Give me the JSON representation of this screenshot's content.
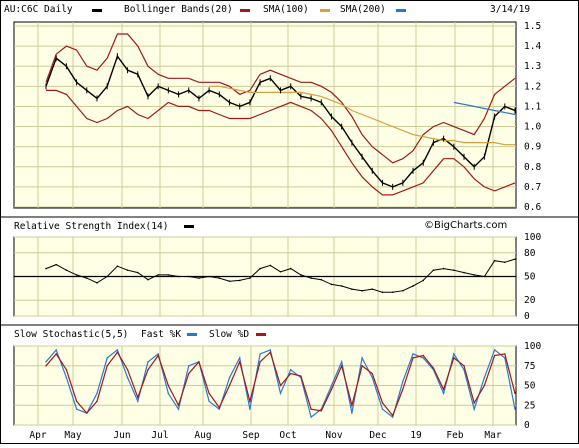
{
  "date": "3/14/19",
  "watermark": "©BigCharts.com",
  "colors": {
    "plot_bg": "#ffffe6",
    "grid": "#cccc99",
    "price": "#000000",
    "bollinger": "#a01818",
    "sma100": "#d4a040",
    "sma200": "#2a78d0",
    "fast_k": "#2a78d0",
    "slow_d": "#a01818",
    "rsi": "#000000"
  },
  "price_panel": {
    "legend": [
      {
        "label": "AU:C6C Daily",
        "color": "#000000",
        "icon": "swatch-dash"
      },
      {
        "label": "Bollinger Bands(20)",
        "color": "#a01818",
        "icon": "swatch-dash"
      },
      {
        "label": "SMA(100)",
        "color": "#d4a040",
        "icon": "swatch-dash"
      },
      {
        "label": "SMA(200)",
        "color": "#2a78d0",
        "icon": "swatch-dash"
      }
    ],
    "y_ticks": [
      "1.5",
      "1.4",
      "1.3",
      "1.2",
      "1.1",
      "1.0",
      "0.9",
      "0.8",
      "0.7",
      "0.6"
    ]
  },
  "rsi_panel": {
    "title": "Relative Strength Index(14)",
    "icon": "swatch-dash",
    "y_ticks": [
      "100",
      "80",
      "50",
      "20",
      "0"
    ]
  },
  "stoch_panel": {
    "title": "Slow Stochastic(5,5)",
    "fast_label": "Fast %K",
    "slow_label": "Slow %D",
    "y_ticks": [
      "100",
      "75",
      "50",
      "25",
      "0"
    ]
  },
  "x_ticks": [
    "Apr",
    "May",
    "Jun",
    "Jul",
    "Aug",
    "Sep",
    "Oct",
    "Nov",
    "Dec",
    "19",
    "Feb",
    "Mar"
  ],
  "chart_data": [
    {
      "type": "line",
      "title": "AU:C6C Daily",
      "ylim": [
        0.6,
        1.5
      ],
      "x": [
        "2018-04-23",
        "2018-05-01",
        "2018-05-07",
        "2018-05-14",
        "2018-05-21",
        "2018-05-28",
        "2018-06-04",
        "2018-06-11",
        "2018-06-18",
        "2018-06-25",
        "2018-07-02",
        "2018-07-09",
        "2018-07-16",
        "2018-07-23",
        "2018-07-30",
        "2018-08-06",
        "2018-08-13",
        "2018-08-20",
        "2018-08-27",
        "2018-09-03",
        "2018-09-10",
        "2018-09-17",
        "2018-09-24",
        "2018-10-01",
        "2018-10-08",
        "2018-10-15",
        "2018-10-22",
        "2018-10-29",
        "2018-11-05",
        "2018-11-12",
        "2018-11-19",
        "2018-11-26",
        "2018-12-03",
        "2018-12-10",
        "2018-12-17",
        "2018-12-24",
        "2018-12-31",
        "2019-01-07",
        "2019-01-14",
        "2019-01-21",
        "2019-01-28",
        "2019-02-04",
        "2019-02-11",
        "2019-02-18",
        "2019-02-25",
        "2019-03-04",
        "2019-03-11"
      ],
      "series": [
        {
          "name": "AU:C6C Daily",
          "values": [
            1.2,
            1.34,
            1.3,
            1.22,
            1.18,
            1.14,
            1.2,
            1.35,
            1.28,
            1.26,
            1.15,
            1.2,
            1.18,
            1.16,
            1.18,
            1.14,
            1.18,
            1.16,
            1.12,
            1.1,
            1.12,
            1.22,
            1.24,
            1.18,
            1.2,
            1.15,
            1.14,
            1.12,
            1.05,
            1.0,
            0.92,
            0.85,
            0.78,
            0.72,
            0.7,
            0.72,
            0.78,
            0.82,
            0.92,
            0.94,
            0.9,
            0.85,
            0.8,
            0.85,
            1.05,
            1.1,
            1.08
          ]
        },
        {
          "name": "Bollinger Bands(20)",
          "values": [
            1.22,
            1.36,
            1.4,
            1.38,
            1.3,
            1.28,
            1.34,
            1.46,
            1.46,
            1.4,
            1.3,
            1.26,
            1.24,
            1.24,
            1.24,
            1.22,
            1.22,
            1.22,
            1.2,
            1.16,
            1.18,
            1.26,
            1.28,
            1.26,
            1.24,
            1.22,
            1.22,
            1.2,
            1.17,
            1.12,
            1.05,
            0.96,
            0.9,
            0.86,
            0.82,
            0.84,
            0.88,
            0.96,
            1.0,
            1.02,
            1.0,
            0.98,
            0.96,
            1.04,
            1.16,
            1.2,
            1.24
          ]
        },
        {
          "name": "",
          "values": [
            1.18,
            1.18,
            1.16,
            1.1,
            1.04,
            1.02,
            1.04,
            1.08,
            1.1,
            1.06,
            1.04,
            1.08,
            1.12,
            1.1,
            1.1,
            1.08,
            1.08,
            1.06,
            1.04,
            1.04,
            1.04,
            1.06,
            1.08,
            1.1,
            1.12,
            1.1,
            1.08,
            1.04,
            0.98,
            0.9,
            0.82,
            0.75,
            0.7,
            0.66,
            0.66,
            0.68,
            0.7,
            0.72,
            0.78,
            0.84,
            0.84,
            0.8,
            0.74,
            0.7,
            0.68,
            0.7,
            0.72
          ]
        },
        {
          "name": "SMA(100)",
          "values": [
            null,
            null,
            null,
            null,
            null,
            null,
            null,
            null,
            null,
            null,
            null,
            null,
            null,
            null,
            null,
            null,
            1.2,
            1.2,
            1.19,
            1.18,
            1.17,
            1.17,
            1.17,
            1.17,
            1.17,
            1.17,
            1.16,
            1.15,
            1.13,
            1.11,
            1.08,
            1.06,
            1.04,
            1.02,
            1.0,
            0.98,
            0.96,
            0.95,
            0.94,
            0.93,
            0.93,
            0.92,
            0.92,
            0.92,
            0.92,
            0.91,
            0.91
          ]
        },
        {
          "name": "SMA(200)",
          "values": [
            null,
            null,
            null,
            null,
            null,
            null,
            null,
            null,
            null,
            null,
            null,
            null,
            null,
            null,
            null,
            null,
            null,
            null,
            null,
            null,
            null,
            null,
            null,
            null,
            null,
            null,
            null,
            null,
            null,
            null,
            null,
            null,
            null,
            null,
            null,
            null,
            null,
            null,
            null,
            null,
            1.12,
            1.11,
            1.1,
            1.09,
            1.08,
            1.07,
            1.06
          ]
        }
      ]
    },
    {
      "type": "line",
      "title": "Relative Strength Index(14)",
      "ylim": [
        0,
        100
      ],
      "series": [
        {
          "name": "Relative Strength Index(14)",
          "values": [
            60,
            65,
            58,
            52,
            48,
            42,
            50,
            63,
            58,
            55,
            46,
            52,
            52,
            50,
            50,
            48,
            50,
            48,
            44,
            45,
            48,
            60,
            64,
            56,
            60,
            52,
            48,
            46,
            40,
            38,
            34,
            32,
            34,
            30,
            30,
            32,
            38,
            45,
            58,
            60,
            58,
            55,
            52,
            50,
            70,
            68,
            72
          ]
        }
      ]
    },
    {
      "type": "line",
      "title": "Slow Stochastic(5,5)",
      "ylim": [
        0,
        100
      ],
      "series": [
        {
          "name": "Fast %K",
          "values": [
            80,
            95,
            60,
            20,
            15,
            40,
            85,
            95,
            60,
            30,
            80,
            90,
            40,
            20,
            75,
            80,
            30,
            20,
            60,
            85,
            20,
            90,
            95,
            40,
            70,
            60,
            10,
            20,
            50,
            80,
            15,
            85,
            60,
            20,
            10,
            55,
            90,
            85,
            70,
            40,
            90,
            70,
            20,
            60,
            95,
            85,
            20
          ]
        },
        {
          "name": "Slow %D",
          "values": [
            75,
            90,
            70,
            30,
            15,
            30,
            75,
            92,
            70,
            35,
            70,
            88,
            50,
            25,
            65,
            80,
            40,
            22,
            50,
            80,
            30,
            80,
            92,
            50,
            65,
            62,
            20,
            18,
            45,
            75,
            25,
            75,
            65,
            28,
            12,
            45,
            85,
            88,
            72,
            45,
            85,
            75,
            28,
            50,
            88,
            90,
            40
          ]
        }
      ]
    }
  ]
}
